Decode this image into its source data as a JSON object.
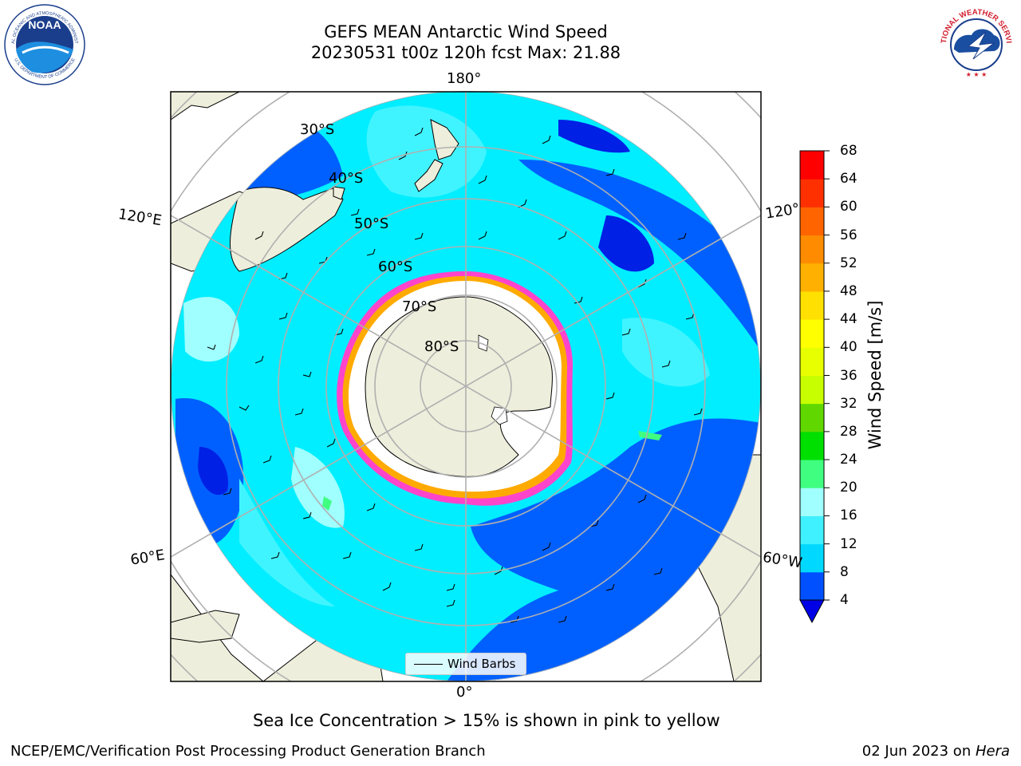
{
  "title_line1": "GEFS MEAN Antarctic Wind Speed",
  "title_line2": "20230531 t00z 120h fcst   Max: 21.88",
  "lon_labels": {
    "top": "180°",
    "bottom": "0°",
    "left_upper": "120°E",
    "left_lower": "60°E",
    "right_upper": "120°",
    "right_lower": "60°W"
  },
  "lat_labels": [
    "30°S",
    "40°S",
    "50°S",
    "60°S",
    "70°S",
    "80°S"
  ],
  "legend_label": "Wind Barbs",
  "colorbar": {
    "label": "Wind Speed [m/s]",
    "ticks": [
      "4",
      "8",
      "12",
      "16",
      "20",
      "24",
      "28",
      "32",
      "36",
      "40",
      "44",
      "48",
      "52",
      "56",
      "60",
      "64",
      "68"
    ],
    "colors": [
      "#0050ff",
      "#00d8ff",
      "#3ff0ff",
      "#a0ffff",
      "#40ff80",
      "#00e000",
      "#60d800",
      "#c8ff00",
      "#e8ff00",
      "#ffff00",
      "#ffe000",
      "#ffb000",
      "#ff8c00",
      "#ff6400",
      "#ff3000",
      "#ff0000"
    ],
    "under_color": "#0000e6"
  },
  "caption": "Sea Ice Concentration > 15% is shown in pink to yellow",
  "footer_left": "NCEP/EMC/Verification Post Processing Product Generation Branch",
  "footer_date": "02 Jun 2023 on ",
  "footer_host": "Hera",
  "noaa_logo": {
    "text": "NOAA",
    "ring_text": "NATIONAL OCEANIC AND ATMOSPHERIC ADMINISTRATION",
    "ring_text_bottom": "U.S. DEPARTMENT OF COMMERCE"
  },
  "nws_logo": {
    "ring_text": "NATIONAL WEATHER SERVICE"
  },
  "colors": {
    "land": "#eeeedc",
    "ocean_base": "#00eeff",
    "ice": "#ffffff",
    "ice_edge": "#ff44cc",
    "ice_edge2": "#ffaa00",
    "grid": "#b0b0b0"
  }
}
